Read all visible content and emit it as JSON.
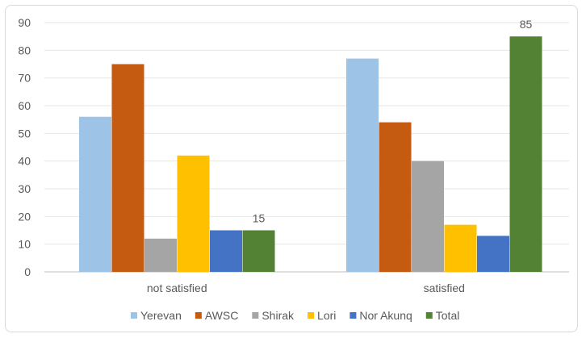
{
  "chart_data": {
    "type": "bar",
    "title": "",
    "xlabel": "",
    "ylabel": "",
    "ylim": [
      0,
      90
    ],
    "yticks": [
      0,
      10,
      20,
      30,
      40,
      50,
      60,
      70,
      80,
      90
    ],
    "grid": true,
    "legend_position": "bottom",
    "categories": [
      "not satisfied",
      "satisfied"
    ],
    "series": [
      {
        "name": "Yerevan",
        "color": "#9DC3E6",
        "values": [
          56,
          77
        ]
      },
      {
        "name": "AWSC",
        "color": "#C55A11",
        "values": [
          75,
          54
        ]
      },
      {
        "name": "Shirak",
        "color": "#A5A5A5",
        "values": [
          12,
          40
        ]
      },
      {
        "name": "Lori",
        "color": "#FFC000",
        "values": [
          42,
          17
        ]
      },
      {
        "name": "Nor Akunq",
        "color": "#4472C4",
        "values": [
          15,
          13
        ]
      },
      {
        "name": "Total",
        "color": "#548235",
        "values": [
          15,
          85
        ]
      }
    ],
    "data_labels": [
      {
        "series": "Total",
        "category": "not satisfied",
        "text": "15"
      },
      {
        "series": "Total",
        "category": "satisfied",
        "text": "85"
      }
    ]
  }
}
